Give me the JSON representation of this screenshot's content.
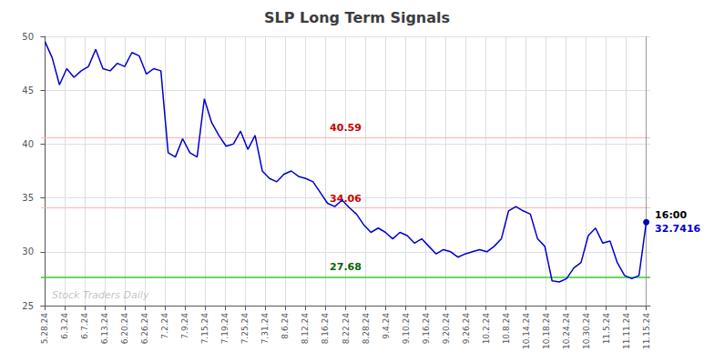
{
  "chart_data": {
    "type": "line",
    "title": "SLP Long Term Signals",
    "color": "#0000CC",
    "x": [
      0,
      0.3614,
      0.7229,
      1.0843,
      1.4458,
      1.8072,
      2.1687,
      2.5301,
      2.8916,
      3.253,
      3.6145,
      3.9759,
      4.3373,
      4.6988,
      5.0602,
      5.4217,
      5.7831,
      6.1446,
      6.506,
      6.8675,
      7.2289,
      7.5904,
      7.9518,
      8.3133,
      8.6747,
      9.0361,
      9.3976,
      9.759,
      10.1205,
      10.4819,
      10.8434,
      11.2048,
      11.5663,
      11.9277,
      12.2892,
      12.6506,
      13.012,
      13.3735,
      13.7349,
      14.0964,
      14.4578,
      14.8193,
      15.1807,
      15.5422,
      15.9036,
      16.2651,
      16.6265,
      16.988,
      17.3494,
      17.7108,
      18.0723,
      18.4337,
      18.7952,
      19.1566,
      19.5181,
      19.8795,
      20.241,
      20.6024,
      20.9639,
      21.3253,
      21.6867,
      22.0482,
      22.4096,
      22.7711,
      23.1325,
      23.494,
      23.8554,
      24.2169,
      24.5783,
      24.9398,
      25.3012,
      25.6627,
      26.0241,
      26.3855,
      26.747,
      27.1084,
      27.4699,
      27.8313,
      28.1928,
      28.5542,
      28.9157,
      29.2771,
      29.6386,
      30
    ],
    "values": [
      49.5,
      48.0,
      45.5,
      47.0,
      46.2,
      46.8,
      47.2,
      48.8,
      47.0,
      46.8,
      47.5,
      47.2,
      48.5,
      48.2,
      46.5,
      47.0,
      46.8,
      39.2,
      38.8,
      40.5,
      39.2,
      38.8,
      44.2,
      42.0,
      40.8,
      39.8,
      40.0,
      41.2,
      39.5,
      40.8,
      37.5,
      36.8,
      36.5,
      37.2,
      37.5,
      37.0,
      36.8,
      36.5,
      35.5,
      34.5,
      34.2,
      34.8,
      34.1,
      33.5,
      32.5,
      31.8,
      32.2,
      31.8,
      31.2,
      31.8,
      31.5,
      30.8,
      31.2,
      30.5,
      29.8,
      30.2,
      30.0,
      29.5,
      29.8,
      30.0,
      30.2,
      30.0,
      30.5,
      31.2,
      33.8,
      34.2,
      33.8,
      33.5,
      31.2,
      30.5,
      27.3,
      27.2,
      27.5,
      28.5,
      29.0,
      31.5,
      32.2,
      30.8,
      31.0,
      29.0,
      27.8,
      27.5,
      27.8,
      32.7416
    ],
    "xlim": [
      -0.2,
      30.2
    ],
    "xticks": [
      {
        "value": 0,
        "label": "5.28.24"
      },
      {
        "value": 1,
        "label": "6.3.24"
      },
      {
        "value": 2,
        "label": "6.7.24"
      },
      {
        "value": 3,
        "label": "6.13.24"
      },
      {
        "value": 4,
        "label": "6.20.24"
      },
      {
        "value": 5,
        "label": "6.26.24"
      },
      {
        "value": 6,
        "label": "7.2.24"
      },
      {
        "value": 7,
        "label": "7.9.24"
      },
      {
        "value": 8,
        "label": "7.15.24"
      },
      {
        "value": 9,
        "label": "7.19.24"
      },
      {
        "value": 10,
        "label": "7.25.24"
      },
      {
        "value": 11,
        "label": "7.31.24"
      },
      {
        "value": 12,
        "label": "8.6.24"
      },
      {
        "value": 13,
        "label": "8.12.24"
      },
      {
        "value": 14,
        "label": "8.16.24"
      },
      {
        "value": 15,
        "label": "8.22.24"
      },
      {
        "value": 16,
        "label": "8.28.24"
      },
      {
        "value": 17,
        "label": "9.4.24"
      },
      {
        "value": 18,
        "label": "9.10.24"
      },
      {
        "value": 19,
        "label": "9.16.24"
      },
      {
        "value": 20,
        "label": "9.20.24"
      },
      {
        "value": 21,
        "label": "9.26.24"
      },
      {
        "value": 22,
        "label": "10.2.24"
      },
      {
        "value": 23,
        "label": "10.8.24"
      },
      {
        "value": 24,
        "label": "10.14.24"
      },
      {
        "value": 25,
        "label": "10.18.24"
      },
      {
        "value": 26,
        "label": "10.24.24"
      },
      {
        "value": 27,
        "label": "10.30.24"
      },
      {
        "value": 28,
        "label": "11.5.24"
      },
      {
        "value": 29,
        "label": "11.11.24"
      },
      {
        "value": 30,
        "label": "11.15.24"
      }
    ],
    "ylim": [
      25,
      50
    ],
    "yticks": [
      25,
      30,
      35,
      40,
      45,
      50
    ],
    "grid": true,
    "hlines": [
      {
        "value": 40.59,
        "color": "#FFB3B3",
        "label": "40.59",
        "label_color": "#CC0000"
      },
      {
        "value": 34.06,
        "color": "#FFB3B3",
        "label": "34.06",
        "label_color": "#CC0000"
      },
      {
        "value": 27.68,
        "color": "#33CC33",
        "label": "27.68",
        "label_color": "#006600"
      }
    ],
    "annotations": [
      {
        "text": "Stock Traders Daily"
      },
      {
        "text": "16:00"
      },
      {
        "text": "32.7416",
        "color": "#0000CC"
      }
    ]
  }
}
